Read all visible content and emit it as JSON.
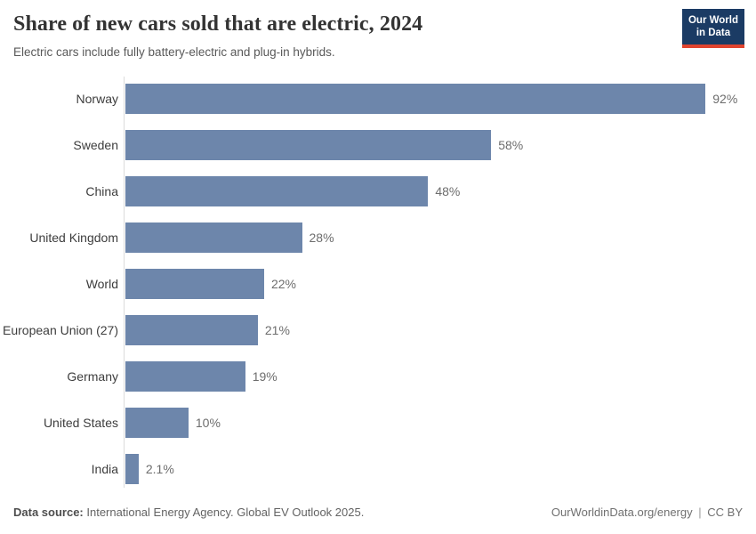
{
  "header": {
    "title": "Share of new cars sold that are electric, 2024",
    "subtitle": "Electric cars include fully battery-electric and plug-in hybrids.",
    "logo": {
      "line1": "Our World",
      "line2": "in Data"
    }
  },
  "chart_data": {
    "type": "bar",
    "orientation": "horizontal",
    "title": "Share of new cars sold that are electric, 2024",
    "subtitle": "Electric cars include fully battery-electric and plug-in hybrids.",
    "categories": [
      "Norway",
      "Sweden",
      "China",
      "United Kingdom",
      "World",
      "European Union (27)",
      "Germany",
      "United States",
      "India"
    ],
    "values": [
      92,
      58,
      48,
      28,
      22,
      21,
      19,
      10,
      2.1
    ],
    "value_labels": [
      "92%",
      "58%",
      "48%",
      "28%",
      "22%",
      "21%",
      "19%",
      "10%",
      "2.1%"
    ],
    "xlabel": "",
    "ylabel": "",
    "xlim": [
      0,
      100
    ],
    "grid": false,
    "legend": "none"
  },
  "colors": {
    "bar": "#6d86ab",
    "logo_bg": "#1b3b64",
    "logo_red": "#e0442f",
    "axis": "#dcdcdc"
  },
  "footer": {
    "source_label": "Data source:",
    "source_text": "International Energy Agency. Global EV Outlook 2025.",
    "url": "OurWorldinData.org/energy",
    "divider": "|",
    "license": "CC BY"
  }
}
